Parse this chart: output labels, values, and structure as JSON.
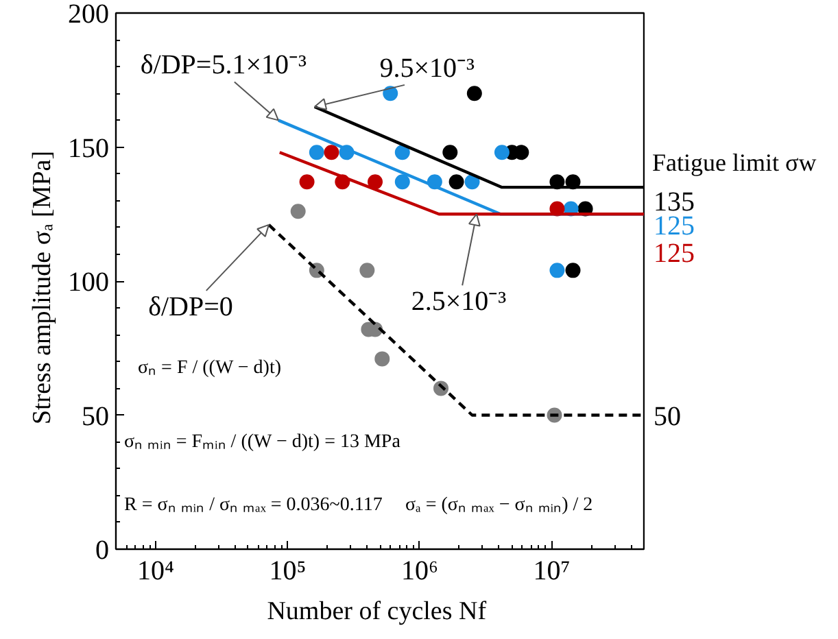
{
  "chart_data": {
    "type": "scatter",
    "xlabel": "Number of cycles  Nf",
    "ylabel": "Stress amplitude  σₐ  [MPa]",
    "log": "x",
    "grid": false,
    "marker": "circle",
    "xlim": [
      5000,
      50000000
    ],
    "xticks": [
      {
        "value": 10000,
        "label": "10⁴"
      },
      {
        "value": 100000,
        "label": "10⁵"
      },
      {
        "value": 1000000,
        "label": "10⁶"
      },
      {
        "value": 10000000,
        "label": "10⁷"
      }
    ],
    "ylim": [
      0,
      200
    ],
    "yticks": [
      0,
      50,
      100,
      150,
      200
    ],
    "series": [
      {
        "color": "#000000",
        "x": [
          2600000,
          1700000,
          1900000,
          5000000,
          5900000,
          11000000,
          14500000,
          18000000,
          14500000
        ],
        "values": [
          170,
          148,
          137,
          148,
          148,
          137,
          137,
          127,
          104
        ]
      },
      {
        "color": "#1a8fe0",
        "x": [
          600000,
          166000,
          280000,
          740000,
          740000,
          1300000,
          2500000,
          4200000,
          14000000,
          11000000
        ],
        "values": [
          170,
          148,
          148,
          148,
          137,
          137,
          137,
          148,
          127,
          104
        ]
      },
      {
        "color": "#c00000",
        "x": [
          215000,
          140000,
          260000,
          460000,
          11000000
        ],
        "values": [
          148,
          137,
          137,
          137,
          127
        ]
      },
      {
        "color": "#808080",
        "x": [
          120000,
          166000,
          400000,
          410000,
          460000,
          520000,
          1450000,
          10500000
        ],
        "values": [
          126,
          104,
          104,
          82,
          82,
          71,
          60,
          50
        ]
      },
      {
        "type": "line",
        "color": "#000000",
        "line_style": "solid",
        "marker": "none",
        "x": [
          160000,
          4200000,
          50000000
        ],
        "values": [
          165,
          135,
          135
        ]
      },
      {
        "type": "line",
        "color": "#1a8fe0",
        "line_style": "solid",
        "marker": "none",
        "x": [
          85000,
          4100000,
          50000000
        ],
        "values": [
          160,
          125,
          125
        ]
      },
      {
        "type": "line",
        "color": "#c00000",
        "line_style": "solid",
        "marker": "none",
        "x": [
          87000,
          1400000,
          50000000
        ],
        "values": [
          148,
          125,
          125
        ]
      },
      {
        "type": "line",
        "color": "#000000",
        "line_style": "dashed",
        "marker": "none",
        "x": [
          72000,
          2500000,
          50000000
        ],
        "values": [
          121,
          50,
          50
        ]
      }
    ],
    "annotations": [
      {
        "text": "δ/DP=5.1×10⁻³",
        "x": 85000,
        "y": 160
      },
      {
        "text": "9.5×10⁻³",
        "x": 160000,
        "y": 165
      },
      {
        "text": "δ/DP=0",
        "x": 72000,
        "y": 121
      },
      {
        "text": "2.5×10⁻³",
        "x": 2700000,
        "y": 125
      },
      {
        "text": "135",
        "x": 50000000,
        "y": 135
      },
      {
        "text": "125",
        "x": 50000000,
        "y": 125
      },
      {
        "text": "125",
        "x": 50000000,
        "y": 125
      },
      {
        "text": "50",
        "x": 50000000,
        "y": 50
      },
      "Fatigue limit  σw",
      "σₙ = F / ((W − d)t)",
      "σₙ ₘᵢₙ = Fₘᵢₙ / ((W − d)t) = 13 MPa",
      "R = σₙ ₘᵢₙ / σₙ ₘₐₓ = 0.036~0.117",
      "σₐ = (σₙ ₘₐₓ − σₙ ₘᵢₙ) / 2"
    ]
  }
}
